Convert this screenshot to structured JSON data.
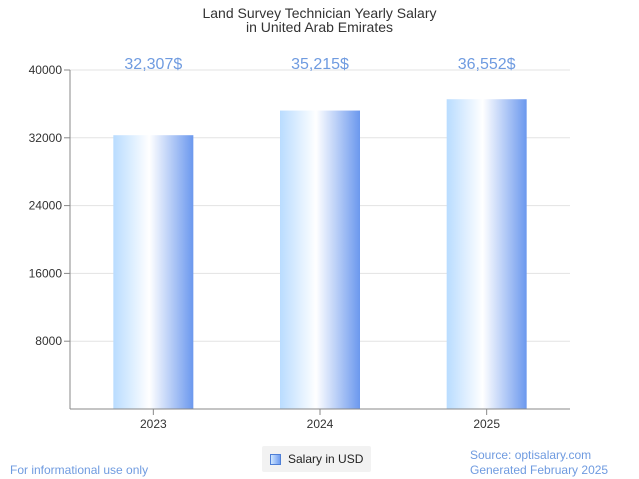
{
  "colors": {
    "accent": "#6f9be0",
    "label": "#6f9be0",
    "bar_light": "#ffffff",
    "bar_mid": "#b9dcff",
    "bar_dark": "#6b98ee",
    "grid": "#e3e3e3",
    "axis": "#888888"
  },
  "chart_data": {
    "type": "bar",
    "title": [
      "Land Survey Technician Yearly Salary",
      "in United Arab Emirates"
    ],
    "categories": [
      "2023",
      "2024",
      "2025"
    ],
    "series": [
      {
        "name": "Salary in USD",
        "values": [
          32307,
          35215,
          36552
        ],
        "data_labels": [
          "32,307$",
          "35,215$",
          "36,552$"
        ]
      }
    ],
    "yticks": [
      "8000",
      "16000",
      "24000",
      "32000",
      "40000"
    ],
    "ylim": [
      0,
      40000
    ],
    "grid": true,
    "legend_position": "bottom"
  },
  "footer": {
    "left": "For informational use only",
    "source": "Source: optisalary.com",
    "generated": "Generated February 2025"
  }
}
